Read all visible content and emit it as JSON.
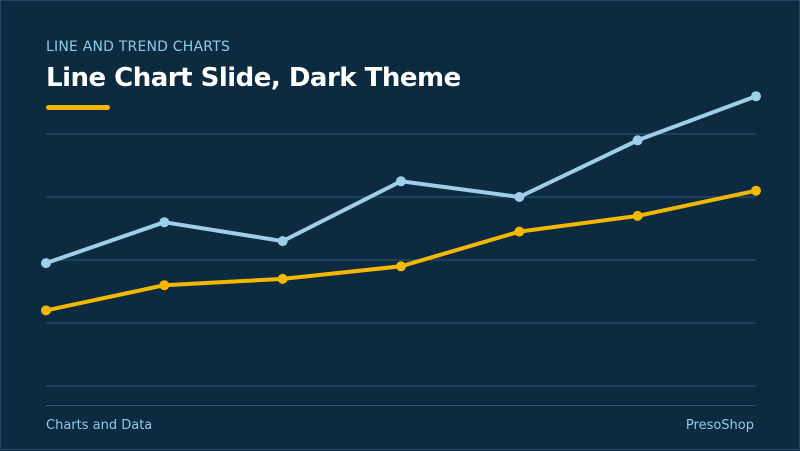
{
  "slide": {
    "eyebrow": "LINE AND TREND CHARTS",
    "title": "Line Chart Slide, Dark Theme",
    "accent_color": "#f5b800",
    "background_color": "#0d2b40",
    "footer_left": "Charts and Data",
    "footer_right": "PresoShop"
  },
  "chart_data": {
    "type": "line",
    "x": [
      1,
      2,
      3,
      4,
      5,
      6,
      7
    ],
    "ylim": [
      0,
      100
    ],
    "grid": true,
    "legend": "none",
    "series": [
      {
        "color": "#9fcfe8",
        "values": [
          39,
          52,
          46,
          65,
          60,
          78,
          92
        ]
      },
      {
        "color": "#f5b800",
        "values": [
          24,
          32,
          34,
          38,
          49,
          54,
          62
        ]
      }
    ]
  }
}
